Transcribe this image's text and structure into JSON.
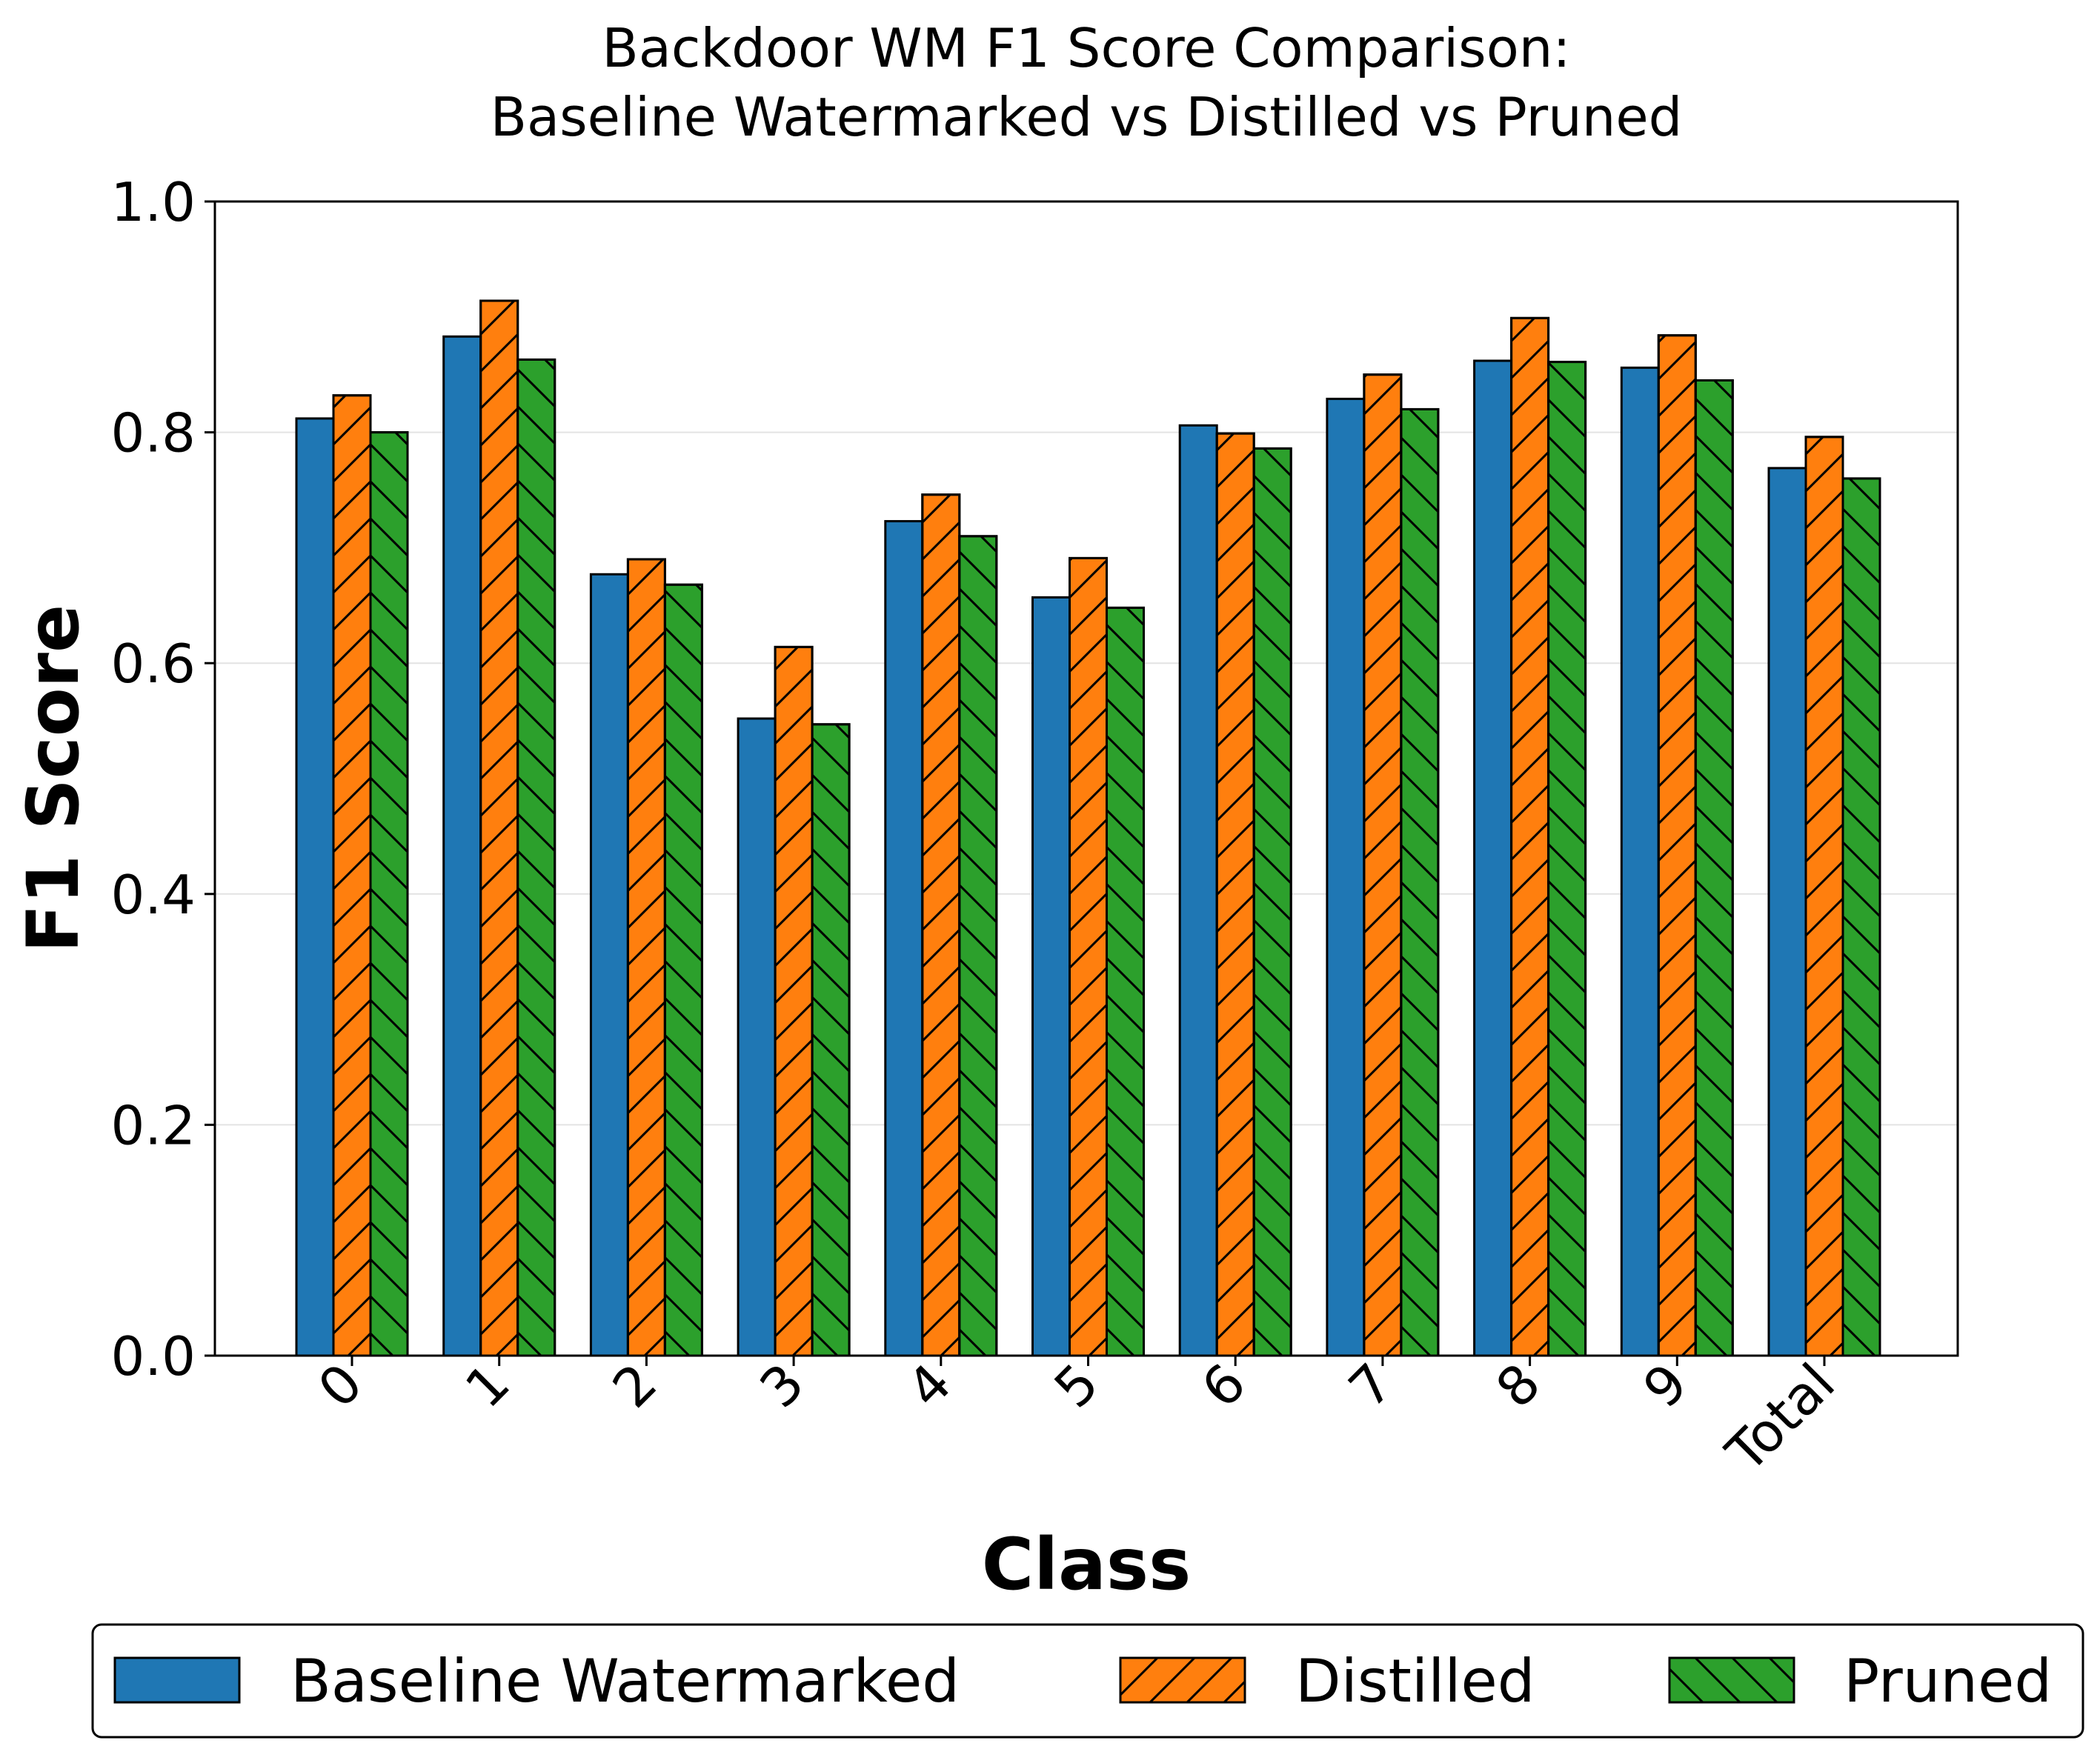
{
  "chart_data": {
    "type": "bar",
    "title": "Backdoor WM F1 Score Comparison:",
    "subtitle": "Baseline Watermarked vs Distilled vs Pruned",
    "xlabel": "Class",
    "ylabel": "F1 Score",
    "categories": [
      "0",
      "1",
      "2",
      "3",
      "4",
      "5",
      "6",
      "7",
      "8",
      "9",
      "Total"
    ],
    "yticks": [
      "0.0",
      "0.2",
      "0.4",
      "0.6",
      "0.8",
      "1.0"
    ],
    "ylim": [
      0,
      1.0
    ],
    "grid": "horizontal",
    "legend_position": "bottom",
    "series": [
      {
        "name": "Baseline Watermarked",
        "color": "#1f77b4",
        "hatch": "none",
        "values": [
          0.812,
          0.883,
          0.677,
          0.552,
          0.723,
          0.657,
          0.806,
          0.829,
          0.862,
          0.856,
          0.769
        ]
      },
      {
        "name": "Distilled",
        "color": "#ff7f0e",
        "hatch": "forward-diagonal",
        "values": [
          0.832,
          0.914,
          0.69,
          0.614,
          0.746,
          0.691,
          0.799,
          0.85,
          0.899,
          0.884,
          0.796
        ]
      },
      {
        "name": "Pruned",
        "color": "#2ca02c",
        "hatch": "back-diagonal",
        "values": [
          0.8,
          0.863,
          0.668,
          0.547,
          0.71,
          0.648,
          0.786,
          0.82,
          0.861,
          0.845,
          0.76
        ]
      }
    ]
  }
}
